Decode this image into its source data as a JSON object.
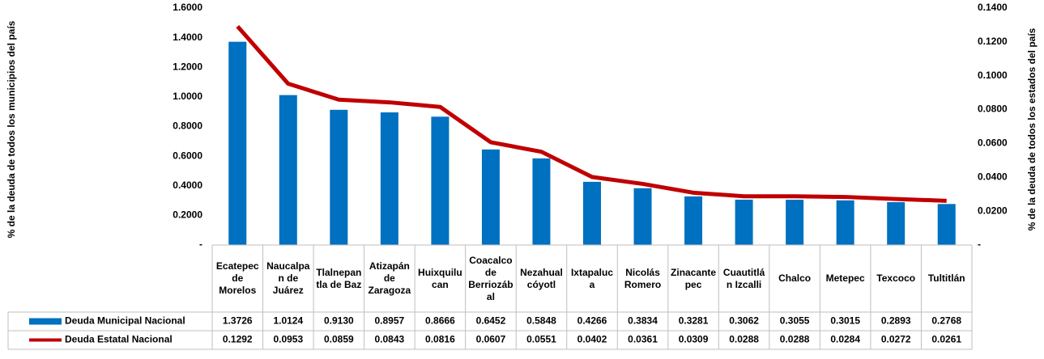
{
  "chart_data": {
    "type": "bar-line",
    "y_label": "% de la deuda  de todos los municipios del país",
    "y2_label": "% de la deuda de todos los estados del país",
    "categories": [
      "Ecatepec de Morelos",
      "Naucalpan de Juárez",
      "Tlalnepantla de Baz",
      "Atizapán de Zaragoza",
      "Huixquilucan",
      "Coacalco de Berriozábal",
      "Nezahualcóyotl",
      "Ixtapaluca",
      "Nicolás Romero",
      "Zinacantepec",
      "Cuautitlán Izcalli",
      "Chalco",
      "Metepec",
      "Texcoco",
      "Tultitlán"
    ],
    "series": [
      {
        "name": "Deuda Municipal Nacional",
        "type": "bar",
        "color": "#0070c0",
        "values": [
          1.3726,
          1.0124,
          0.913,
          0.8957,
          0.8666,
          0.6452,
          0.5848,
          0.4266,
          0.3834,
          0.3281,
          0.3062,
          0.3055,
          0.3015,
          0.2893,
          0.2768
        ],
        "value_labels": [
          "1.3726",
          "1.0124",
          "0.9130",
          "0.8957",
          "0.8666",
          "0.6452",
          "0.5848",
          "0.4266",
          "0.3834",
          "0.3281",
          "0.3062",
          "0.3055",
          "0.3015",
          "0.2893",
          "0.2768"
        ]
      },
      {
        "name": "Deuda Estatal Nacional",
        "type": "line",
        "axis": "y2",
        "color": "#c00000",
        "values": [
          0.1292,
          0.0953,
          0.0859,
          0.0843,
          0.0816,
          0.0607,
          0.0551,
          0.0402,
          0.0361,
          0.0309,
          0.0288,
          0.0288,
          0.0284,
          0.0272,
          0.0261
        ],
        "value_labels": [
          "0.1292",
          "0.0953",
          "0.0859",
          "0.0843",
          "0.0816",
          "0.0607",
          "0.0551",
          "0.0402",
          "0.0361",
          "0.0309",
          "0.0288",
          "0.0288",
          "0.0284",
          "0.0272",
          "0.0261"
        ]
      }
    ],
    "ylim": [
      0,
      1.6
    ],
    "yticks": [
      {
        "value": 0,
        "label": "-"
      },
      {
        "value": 0.2,
        "label": "0.2000"
      },
      {
        "value": 0.4,
        "label": "0.4000"
      },
      {
        "value": 0.6,
        "label": "0.6000"
      },
      {
        "value": 0.8,
        "label": "0.8000"
      },
      {
        "value": 1,
        "label": "1.0000"
      },
      {
        "value": 1.2,
        "label": "1.2000"
      },
      {
        "value": 1.4,
        "label": "1.4000"
      },
      {
        "value": 1.6,
        "label": "1.6000"
      }
    ],
    "y2lim": [
      0,
      0.14
    ],
    "y2ticks": [
      {
        "value": 0,
        "label": "-"
      },
      {
        "value": 0.02,
        "label": "0.0200"
      },
      {
        "value": 0.04,
        "label": "0.0400"
      },
      {
        "value": 0.06,
        "label": "0.0600"
      },
      {
        "value": 0.08,
        "label": "0.0800"
      },
      {
        "value": 0.1,
        "label": "0.1000"
      },
      {
        "value": 0.12,
        "label": "0.1200"
      },
      {
        "value": 0.14,
        "label": "0.1400"
      }
    ],
    "grid": false
  }
}
